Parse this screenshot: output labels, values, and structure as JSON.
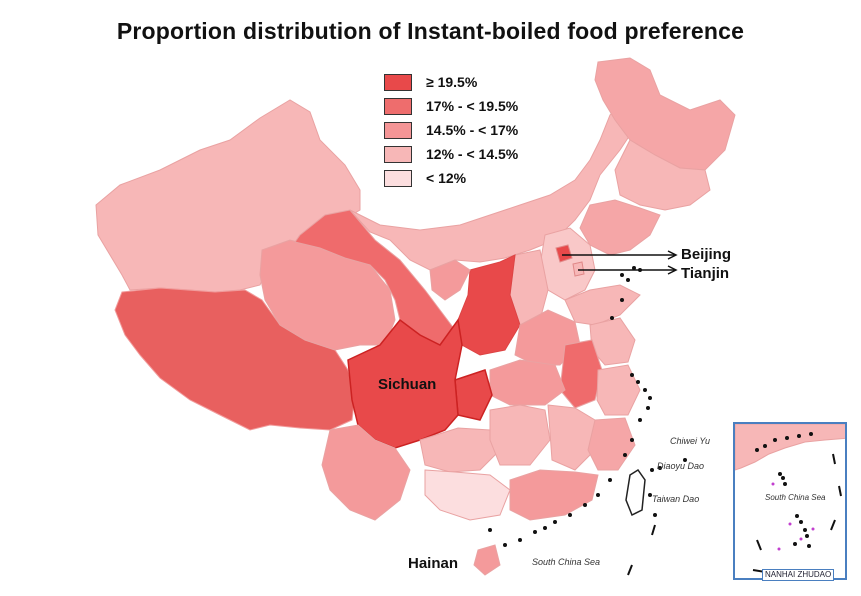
{
  "title": "Proportion distribution of Instant-boiled food preference",
  "legend": [
    {
      "label": "≥ 19.5%",
      "color": "#e8494a"
    },
    {
      "label": "17% - < 19.5%",
      "color": "#ee6d6d"
    },
    {
      "label": "14.5% - < 17%",
      "color": "#f49596"
    },
    {
      "label": "12% - < 14.5%",
      "color": "#f7b7b7"
    },
    {
      "label": "< 12%",
      "color": "#fcdedf"
    }
  ],
  "labels": {
    "sichuan": "Sichuan",
    "hainan": "Hainan",
    "beijing": "Beijing",
    "tianjin": "Tianjin",
    "chiwei_yu": "Chiwei Yu",
    "diaoyu_dao": "Diaoyu Dao",
    "taiwan_dao": "Taiwan Dao",
    "south_china_sea": "South China Sea",
    "inset_sea": "South China Sea",
    "nanhai": "NANHAI ZHUDAO"
  }
}
